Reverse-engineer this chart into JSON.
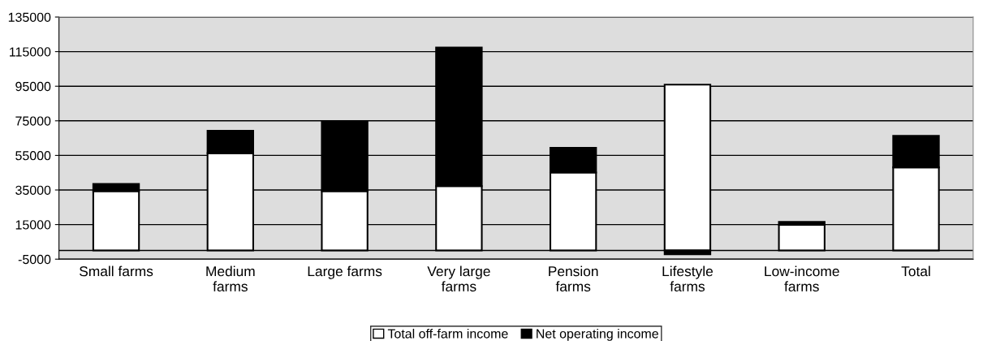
{
  "chart_data": {
    "type": "bar",
    "stacked": true,
    "categories": [
      "Small farms",
      "Medium\nfarms",
      "Large farms",
      "Very large\nfarms",
      "Pension\nfarms",
      "Lifestyle\nfarms",
      "Low-income\nfarms",
      "Total"
    ],
    "series": [
      {
        "name": "Total off-farm income",
        "color": "#ffffff",
        "values": [
          34300,
          56300,
          34300,
          37200,
          45100,
          95900,
          14800,
          48100
        ]
      },
      {
        "name": "Net operating income",
        "color": "#000000",
        "values": [
          4200,
          12900,
          40400,
          80200,
          14300,
          -2200,
          1800,
          18200
        ]
      }
    ],
    "ylim": [
      -5000,
      135000
    ],
    "yticks": [
      -5000,
      15000,
      35000,
      55000,
      75000,
      95000,
      115000,
      135000
    ],
    "grid": "y",
    "legend": "bottom"
  }
}
